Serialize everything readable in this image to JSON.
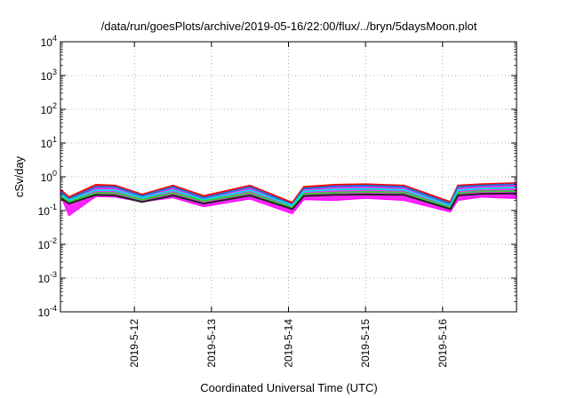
{
  "chart_data": {
    "type": "area",
    "title": "/data/run/goesPlots/archive/2019-05-16/22:00/flux/../bryn/5daysMoon.plot",
    "xlabel": "Coordinated Universal Time (UTC)",
    "ylabel": "cSv/day",
    "yscale": "log",
    "ylim_exponents": [
      -4,
      4
    ],
    "y_tick_labels": [
      {
        "base": "10",
        "exp": "-4"
      },
      {
        "base": "10",
        "exp": "-3"
      },
      {
        "base": "10",
        "exp": "-2"
      },
      {
        "base": "10",
        "exp": "-1"
      },
      {
        "base": "10",
        "exp": "0"
      },
      {
        "base": "10",
        "exp": "1"
      },
      {
        "base": "10",
        "exp": "2"
      },
      {
        "base": "10",
        "exp": "3"
      },
      {
        "base": "10",
        "exp": "4"
      }
    ],
    "x_tick_labels": [
      "2019-5-12",
      "2019-5-13",
      "2019-5-14",
      "2019-5-15",
      "2019-5-16"
    ],
    "xlim_days": [
      11.04,
      16.96
    ],
    "x_tick_days": [
      12,
      13,
      14,
      15,
      16
    ],
    "grid": true,
    "grid_style": "dotted",
    "series_colors": [
      "#ff00ff",
      "#ff0000",
      "#1f6fd6",
      "#00e0e0",
      "#33cc33",
      "#222222"
    ],
    "series": [
      {
        "color": "#ff00ff",
        "x": [
          11.05,
          11.15,
          11.5,
          11.75,
          12.1,
          12.5,
          12.9,
          13.5,
          14.05,
          14.2,
          14.6,
          15.0,
          15.5,
          16.1,
          16.2,
          16.5,
          16.95
        ],
        "values": [
          0.25,
          0.07,
          0.26,
          0.25,
          0.18,
          0.24,
          0.13,
          0.22,
          0.08,
          0.21,
          0.2,
          0.23,
          0.2,
          0.09,
          0.2,
          0.25,
          0.23
        ]
      },
      {
        "color": "#ff0000",
        "x": [
          11.05,
          11.15,
          11.5,
          11.75,
          12.1,
          12.5,
          12.9,
          13.5,
          14.05,
          14.2,
          14.6,
          15.0,
          15.5,
          16.1,
          16.2,
          16.5,
          16.95
        ],
        "values": [
          0.4,
          0.25,
          0.58,
          0.55,
          0.3,
          0.55,
          0.27,
          0.55,
          0.17,
          0.5,
          0.58,
          0.6,
          0.55,
          0.18,
          0.55,
          0.6,
          0.65
        ]
      },
      {
        "color": "#1f6fd6",
        "x": [
          11.05,
          11.15,
          11.5,
          11.75,
          12.1,
          12.5,
          12.9,
          13.5,
          14.05,
          14.2,
          14.6,
          15.0,
          15.5,
          16.1,
          16.2,
          16.5,
          16.95
        ],
        "values": [
          0.35,
          0.22,
          0.5,
          0.5,
          0.27,
          0.5,
          0.24,
          0.5,
          0.15,
          0.45,
          0.52,
          0.55,
          0.5,
          0.16,
          0.5,
          0.55,
          0.6
        ]
      },
      {
        "color": "#00e0e0",
        "x": [
          11.05,
          11.15,
          11.5,
          11.75,
          12.1,
          12.5,
          12.9,
          13.5,
          14.05,
          14.2,
          14.6,
          15.0,
          15.5,
          16.1,
          16.2,
          16.5,
          16.95
        ],
        "values": [
          0.3,
          0.2,
          0.4,
          0.4,
          0.24,
          0.4,
          0.21,
          0.4,
          0.14,
          0.37,
          0.42,
          0.44,
          0.41,
          0.14,
          0.4,
          0.45,
          0.48
        ]
      },
      {
        "color": "#33cc33",
        "x": [
          11.05,
          11.15,
          11.5,
          11.75,
          12.1,
          12.5,
          12.9,
          13.5,
          14.05,
          14.2,
          14.6,
          15.0,
          15.5,
          16.1,
          16.2,
          16.5,
          16.95
        ],
        "values": [
          0.26,
          0.18,
          0.33,
          0.33,
          0.21,
          0.33,
          0.19,
          0.33,
          0.12,
          0.31,
          0.34,
          0.36,
          0.34,
          0.12,
          0.33,
          0.37,
          0.38
        ]
      },
      {
        "color": "#222222",
        "x": [
          11.05,
          11.15,
          11.5,
          11.75,
          12.1,
          12.5,
          12.9,
          13.5,
          14.05,
          14.2,
          14.6,
          15.0,
          15.5,
          16.1,
          16.2,
          16.5,
          16.95
        ],
        "values": [
          0.23,
          0.16,
          0.29,
          0.28,
          0.18,
          0.28,
          0.16,
          0.28,
          0.11,
          0.27,
          0.29,
          0.3,
          0.29,
          0.11,
          0.28,
          0.31,
          0.32
        ]
      }
    ]
  }
}
